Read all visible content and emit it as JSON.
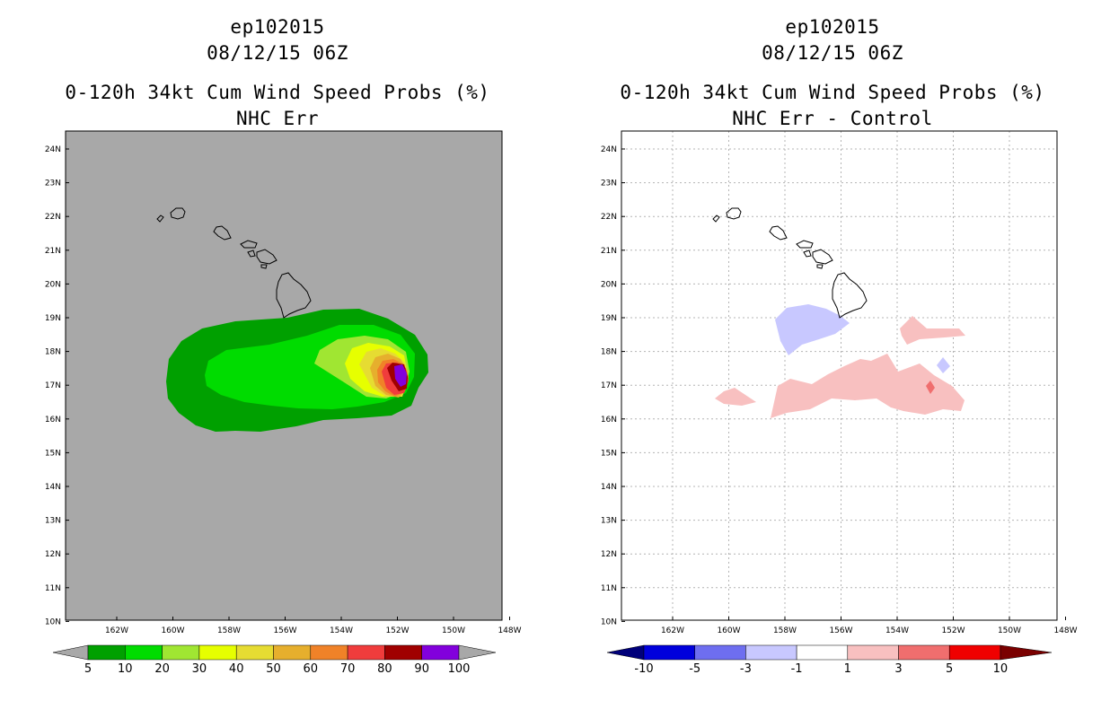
{
  "left_panel": {
    "storm_id": "ep102015",
    "datetime": "08/12/15 06Z",
    "product": "0-120h 34kt Cum Wind Speed Probs (%)",
    "subtitle": "NHC Err",
    "background_color": "#a8a8a8",
    "colorbar": {
      "labels": [
        "5",
        "10",
        "20",
        "30",
        "40",
        "50",
        "60",
        "70",
        "80",
        "90",
        "100"
      ],
      "colors": [
        "#00a000",
        "#00dc00",
        "#a0e632",
        "#e6ff00",
        "#e6dc32",
        "#e6af2d",
        "#f08228",
        "#f03c3c",
        "#a00000",
        "#8200dc"
      ],
      "under_color": "#a8a8a8",
      "over_color": "#a8a8a8"
    }
  },
  "right_panel": {
    "storm_id": "ep102015",
    "datetime": "08/12/15 06Z",
    "product": "0-120h 34kt Cum Wind Speed Probs (%)",
    "subtitle": "NHC Err - Control",
    "background_color": "#ffffff",
    "colorbar": {
      "labels": [
        "-10",
        "-5",
        "-3",
        "-1",
        "1",
        "3",
        "5",
        "10"
      ],
      "colors": [
        "#0000dc",
        "#6e6ef0",
        "#c8c8ff",
        "#ffffff",
        "#f8c0c0",
        "#f06e6e",
        "#f00000"
      ],
      "under_color": "#00007a",
      "over_color": "#7a0000"
    }
  },
  "map_axes": {
    "lat_labels": [
      "24N",
      "23N",
      "22N",
      "21N",
      "20N",
      "19N",
      "18N",
      "17N",
      "16N",
      "15N",
      "14N",
      "13N",
      "12N",
      "11N",
      "10N"
    ],
    "lon_labels": [
      "162W",
      "160W",
      "158W",
      "156W",
      "154W",
      "152W",
      "150W",
      "148W"
    ],
    "lat_range": [
      10,
      24.5
    ],
    "lon_range": [
      -163.5,
      -148
    ]
  }
}
